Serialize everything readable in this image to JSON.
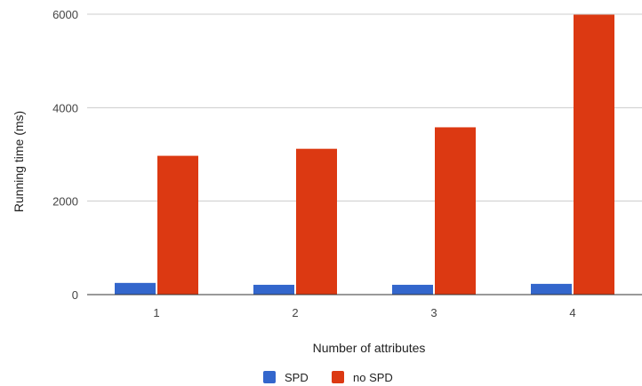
{
  "chart_data": {
    "type": "bar",
    "categories": [
      "1",
      "2",
      "3",
      "4"
    ],
    "series": [
      {
        "name": "SPD",
        "values": [
          250,
          210,
          210,
          230
        ]
      },
      {
        "name": "no SPD",
        "values": [
          2970,
          3120,
          3580,
          5990
        ]
      }
    ],
    "xlabel": "Number of attributes",
    "ylabel": "Running time (ms)",
    "ylim": [
      0,
      6000
    ],
    "yticks": [
      "0",
      "2000",
      "4000",
      "6000"
    ],
    "grid": true,
    "legend": "bottom",
    "colors": {
      "SPD": "#3366cc",
      "no SPD": "#dc3912",
      "grid": "#cccccc",
      "baseline": "#333333"
    }
  }
}
